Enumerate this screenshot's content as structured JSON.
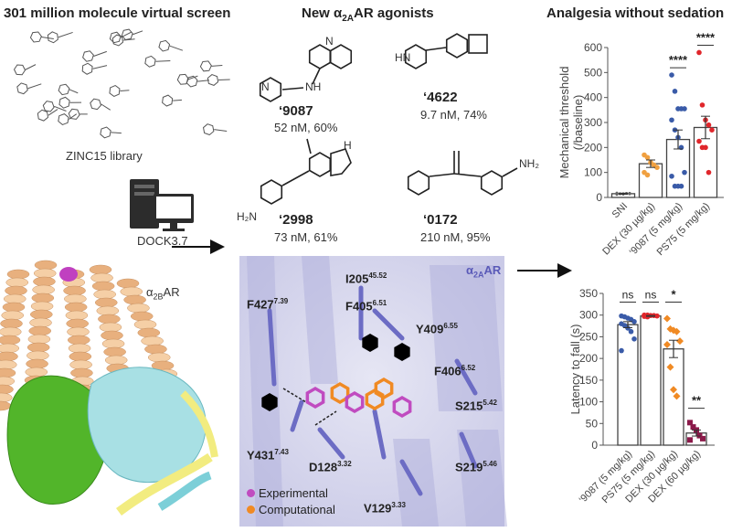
{
  "titles": {
    "screen": "301 million molecule virtual screen",
    "agonists_pre": "New α",
    "agonists_sub": "2A",
    "agonists_post": "AR agonists",
    "analgesia": "Analgesia without sedation"
  },
  "library_label": "ZINC15 library",
  "docking_label": "DOCK3.7",
  "receptor_label": {
    "main": "α",
    "sub": "2B",
    "post": "AR"
  },
  "panel_receptor_label": {
    "main": "α",
    "sub": "2A",
    "post": "AR"
  },
  "compounds": [
    {
      "id": "‘9087",
      "value": "52 nM, 60%"
    },
    {
      "id": "‘4622",
      "value": "9.7 nM, 74%"
    },
    {
      "id": "‘2998",
      "value": "73 nM, 61%"
    },
    {
      "id": "‘0172",
      "value": "210 nM, 95%"
    }
  ],
  "atom_labels": {
    "N": "N",
    "NH": "NH",
    "HN": "HN",
    "H2N": "H₂N",
    "NH2": "NH₂",
    "H": "H",
    "N2": "N"
  },
  "residues": [
    {
      "name": "I205",
      "sup": "45.52"
    },
    {
      "name": "F405",
      "sup": "6.51"
    },
    {
      "name": "F427",
      "sup": "7.39"
    },
    {
      "name": "Y409",
      "sup": "6.55"
    },
    {
      "name": "F406",
      "sup": "6.52"
    },
    {
      "name": "S215",
      "sup": "5.42"
    },
    {
      "name": "Y431",
      "sup": "7.43"
    },
    {
      "name": "D128",
      "sup": "3.32"
    },
    {
      "name": "S219",
      "sup": "5.46"
    },
    {
      "name": "V129",
      "sup": "3.33"
    }
  ],
  "legend": [
    {
      "label": "Experimental",
      "color": "#c04cc0"
    },
    {
      "label": "Computational",
      "color": "#f08a24"
    }
  ],
  "chart_data": [
    {
      "type": "bar",
      "ylabel": "Mechanical threshold\n(/baseline)",
      "ylabel_lines": [
        "Mechanical threshold",
        "(/baseline)"
      ],
      "ylim": [
        0,
        600
      ],
      "yticks": [
        0,
        100,
        200,
        300,
        400,
        500,
        600
      ],
      "categories": [
        "SNI",
        "DEX (30 µg/kg)",
        "‘9087 (5 mg/kg)",
        "PS75 (5 mg/kg)"
      ],
      "values": [
        15,
        135,
        232,
        280
      ],
      "sem": [
        2,
        15,
        38,
        45
      ],
      "points": [
        [
          12,
          14,
          15,
          16,
          17,
          18,
          15,
          13,
          16,
          14
        ],
        [
          170,
          160,
          140,
          130,
          120,
          100,
          90
        ],
        [
          490,
          425,
          355,
          355,
          355,
          310,
          270,
          240,
          200,
          100,
          85,
          45,
          45,
          45
        ],
        [
          580,
          370,
          310,
          290,
          270,
          225,
          200,
          200,
          100
        ]
      ],
      "point_colors": [
        "#666666",
        "#f0a040",
        "#3a5ba8",
        "#e0262b"
      ],
      "significance": [
        "",
        "",
        "****",
        "****"
      ]
    },
    {
      "type": "bar",
      "ylabel": "Latency to fall (s)",
      "ylabel_lines": [
        "Latency to fall (s)"
      ],
      "ylim": [
        0,
        350
      ],
      "yticks": [
        0,
        50,
        100,
        150,
        200,
        250,
        300,
        350
      ],
      "categories": [
        "‘9087 (5 mg/kg)",
        "PS75 (5 mg/kg)",
        "DEX (30 µg/kg)",
        "DEX (60 µg/kg)"
      ],
      "values": [
        278,
        298,
        222,
        28
      ],
      "sem": [
        7,
        1,
        20,
        7
      ],
      "points": [
        [
          298,
          296,
          293,
          290,
          285,
          280,
          276,
          270,
          262,
          245,
          218
        ],
        [
          300,
          300,
          299,
          299,
          298,
          297,
          296
        ],
        [
          292,
          268,
          265,
          262,
          240,
          232,
          180,
          128,
          113
        ],
        [
          52,
          42,
          35,
          22,
          15,
          12
        ]
      ],
      "point_colors": [
        "#3a5ba8",
        "#e0262b",
        "#f08a24",
        "#8b1a4a"
      ],
      "point_shapes": [
        "circle",
        "circle",
        "diamond",
        "square"
      ],
      "significance": [
        "ns",
        "ns",
        "*",
        "**"
      ]
    }
  ]
}
